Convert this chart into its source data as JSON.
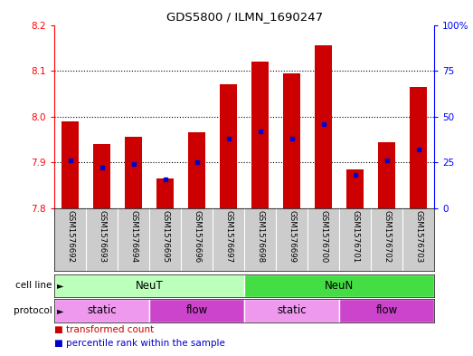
{
  "title": "GDS5800 / ILMN_1690247",
  "samples": [
    "GSM1576692",
    "GSM1576693",
    "GSM1576694",
    "GSM1576695",
    "GSM1576696",
    "GSM1576697",
    "GSM1576698",
    "GSM1576699",
    "GSM1576700",
    "GSM1576701",
    "GSM1576702",
    "GSM1576703"
  ],
  "transformed_counts": [
    7.99,
    7.94,
    7.955,
    7.865,
    7.965,
    8.07,
    8.12,
    8.095,
    8.155,
    7.885,
    7.945,
    8.065
  ],
  "percentile_ranks": [
    26,
    22,
    24,
    16,
    25,
    38,
    42,
    38,
    46,
    18,
    26,
    32
  ],
  "ylim_left": [
    7.8,
    8.2
  ],
  "ylim_right": [
    0,
    100
  ],
  "yticks_left": [
    7.8,
    7.9,
    8.0,
    8.1,
    8.2
  ],
  "yticks_right": [
    0,
    25,
    50,
    75,
    100
  ],
  "bar_color": "#cc0000",
  "dot_color": "#0000cc",
  "bar_bottom": 7.8,
  "cell_line_data": [
    {
      "label": "NeuT",
      "start": 0,
      "end": 6,
      "color": "#bbffbb"
    },
    {
      "label": "NeuN",
      "start": 6,
      "end": 12,
      "color": "#44dd44"
    }
  ],
  "protocol_data": [
    {
      "label": "static",
      "start": 0,
      "end": 3,
      "color": "#ee99ee"
    },
    {
      "label": "flow",
      "start": 3,
      "end": 6,
      "color": "#cc44cc"
    },
    {
      "label": "static",
      "start": 6,
      "end": 9,
      "color": "#ee99ee"
    },
    {
      "label": "flow",
      "start": 9,
      "end": 12,
      "color": "#cc44cc"
    }
  ],
  "legend_items": [
    {
      "label": "transformed count",
      "color": "#cc0000"
    },
    {
      "label": "percentile rank within the sample",
      "color": "#0000cc"
    }
  ],
  "tick_area_color": "#cccccc",
  "plot_bg_color": "#ffffff"
}
